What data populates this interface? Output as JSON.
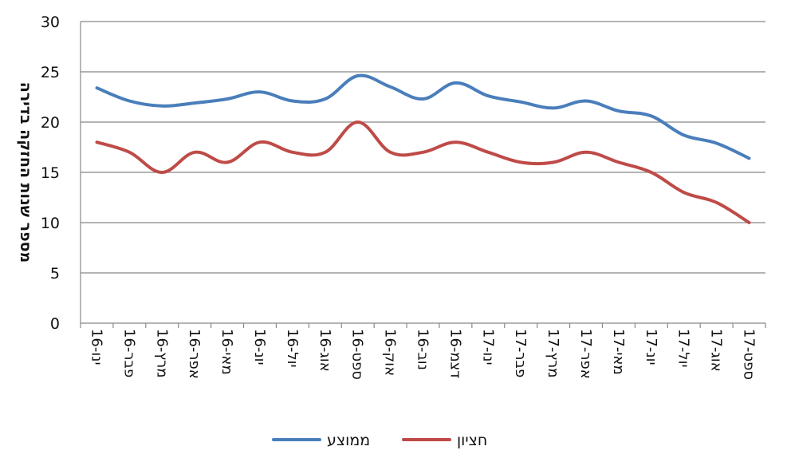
{
  "chart_data": {
    "type": "line",
    "title": "",
    "xlabel": "",
    "ylabel": "מספר שנות החזקה בדירה",
    "ylim": [
      0,
      30
    ],
    "yticks": [
      0,
      5,
      10,
      15,
      20,
      25,
      30
    ],
    "grid": true,
    "legend_position": "bottom",
    "categories": [
      "ינו-16",
      "פבר-16",
      "מרץ-16",
      "אפר-16",
      "מאי-16",
      "יונ-16",
      "יול-16",
      "אוג-16",
      "ספט-16",
      "אוק-16",
      "נוב-16",
      "דצמ-16",
      "ינו-17",
      "פבר-17",
      "מרץ-17",
      "אפר-17",
      "מאי-17",
      "יונ-17",
      "יול-17",
      "אוג-17",
      "ספט-17"
    ],
    "series": [
      {
        "name": "ממוצע",
        "color": "#4a7ebb",
        "values": [
          23.4,
          22.1,
          21.6,
          21.9,
          22.3,
          23.0,
          22.1,
          22.3,
          24.6,
          23.5,
          22.3,
          23.9,
          22.6,
          22.0,
          21.4,
          22.1,
          21.1,
          20.6,
          18.7,
          17.9,
          16.4
        ]
      },
      {
        "name": "חציון",
        "color": "#be4b48",
        "values": [
          18,
          17,
          15,
          17,
          16,
          18,
          17,
          17,
          20,
          17,
          17,
          18,
          17,
          16,
          16,
          17,
          16,
          15,
          13,
          12,
          10
        ]
      }
    ]
  }
}
